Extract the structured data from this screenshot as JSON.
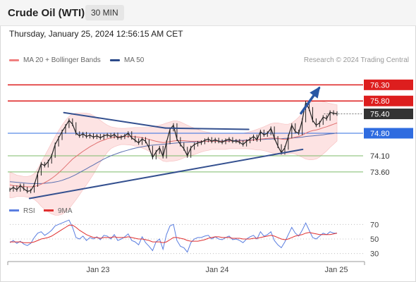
{
  "header": {
    "title": "Crude Oil (WTI)",
    "timeframe": "30 MIN",
    "datetime": "Thursday, January 25, 2024 12:56:15 AM CET"
  },
  "legend": {
    "items": [
      {
        "label": "MA 20 + Bollinger Bands",
        "color": "#f08080"
      },
      {
        "label": "MA 50",
        "color": "#2c4a8a"
      }
    ],
    "credit": "Research © 2024 Trading Central"
  },
  "colors": {
    "price": "#222222",
    "ma20": "#e07070",
    "bollinger_fill": "#fde3e3",
    "ma50": "#5a6fb0",
    "trendline": "#34508f",
    "resistance": "#dd1e1e",
    "support": "#7dbb6a",
    "pivot": "#2f6ce0",
    "current": "#333333",
    "arrow": "#2957a4",
    "rsi": "#5a7ee0",
    "rsi_ma": "#e03030"
  },
  "chart_data": [
    {
      "type": "line",
      "name": "price",
      "title": "",
      "x_ticks": [
        "Jan 23",
        "Jan 24",
        "Jan 25"
      ],
      "ylim": [
        72.55,
        77.05
      ],
      "levels": [
        {
          "value": 76.3,
          "label": "76.30",
          "kind": "resistance"
        },
        {
          "value": 75.8,
          "label": "75.80",
          "kind": "resistance"
        },
        {
          "value": 75.4,
          "label": "75.40",
          "kind": "current"
        },
        {
          "value": 74.8,
          "label": "74.80",
          "kind": "pivot"
        },
        {
          "value": 74.1,
          "label": "74.10",
          "kind": "support"
        },
        {
          "value": 73.6,
          "label": "73.60",
          "kind": "support"
        }
      ],
      "trendlines": [
        {
          "from": [
            0.165,
            75.44
          ],
          "to": [
            0.475,
            74.96
          ]
        },
        {
          "from": [
            0.475,
            74.96
          ],
          "to": [
            0.73,
            74.92
          ]
        },
        {
          "from": [
            0.06,
            72.78
          ],
          "to": [
            0.895,
            74.3
          ]
        }
      ],
      "arrow": {
        "from": [
          0.89,
          75.42
        ],
        "to": [
          0.945,
          76.2
        ]
      },
      "close": [
        73.05,
        73.12,
        73.05,
        73.18,
        73.08,
        73.0,
        73.02,
        73.2,
        73.55,
        73.85,
        73.8,
        73.92,
        74.1,
        74.45,
        74.65,
        74.85,
        75.02,
        75.2,
        75.08,
        74.8,
        74.72,
        74.78,
        74.7,
        74.74,
        74.68,
        74.72,
        74.66,
        74.72,
        74.75,
        74.7,
        74.76,
        74.66,
        74.68,
        74.72,
        74.8,
        74.66,
        74.58,
        74.5,
        74.62,
        74.55,
        74.35,
        74.05,
        74.22,
        74.35,
        74.08,
        74.52,
        74.92,
        75.05,
        74.62,
        74.45,
        74.32,
        74.1,
        74.35,
        74.45,
        74.5,
        74.52,
        74.58,
        74.62,
        74.55,
        74.6,
        74.55,
        74.52,
        74.58,
        74.62,
        74.55,
        74.56,
        74.52,
        74.45,
        74.55,
        74.62,
        74.7,
        74.6,
        74.85,
        74.75,
        74.8,
        74.95,
        74.65,
        74.4,
        74.2,
        74.35,
        74.7,
        75.05,
        74.85,
        74.8,
        75.2,
        75.75,
        75.55,
        75.2,
        75.05,
        75.12,
        75.3,
        75.25,
        75.45,
        75.42,
        75.4
      ],
      "ma20": [
        73.2,
        73.18,
        73.17,
        73.16,
        73.15,
        73.14,
        73.14,
        73.15,
        73.18,
        73.22,
        73.27,
        73.33,
        73.4,
        73.48,
        73.57,
        73.67,
        73.78,
        73.89,
        74.0,
        74.08,
        74.16,
        74.24,
        74.31,
        74.38,
        74.44,
        74.5,
        74.55,
        74.59,
        74.63,
        74.66,
        74.68,
        74.69,
        74.7,
        74.7,
        74.7,
        74.7,
        74.69,
        74.68,
        74.66,
        74.64,
        74.61,
        74.58,
        74.55,
        74.53,
        74.51,
        74.52,
        74.54,
        74.56,
        74.57,
        74.57,
        74.57,
        74.56,
        74.55,
        74.55,
        74.55,
        74.55,
        74.55,
        74.55,
        74.55,
        74.55,
        74.55,
        74.55,
        74.55,
        74.56,
        74.56,
        74.56,
        74.56,
        74.56,
        74.57,
        74.58,
        74.59,
        74.6,
        74.62,
        74.63,
        74.64,
        74.65,
        74.65,
        74.64,
        74.62,
        74.61,
        74.62,
        74.65,
        74.68,
        74.7,
        74.74,
        74.8,
        74.85,
        74.88,
        74.9,
        74.93,
        74.97,
        75.0,
        75.04,
        75.08,
        75.12
      ],
      "bb_upper": [
        73.6,
        73.55,
        73.5,
        73.48,
        73.46,
        73.46,
        73.48,
        73.55,
        73.7,
        73.9,
        74.1,
        74.3,
        74.5,
        74.7,
        74.88,
        75.05,
        75.2,
        75.32,
        75.4,
        75.42,
        75.43,
        75.43,
        75.42,
        75.4,
        75.35,
        75.28,
        75.2,
        75.12,
        75.05,
        75.0,
        74.98,
        74.96,
        74.95,
        74.95,
        74.96,
        74.97,
        74.98,
        74.98,
        74.98,
        74.98,
        74.98,
        75.0,
        75.02,
        75.05,
        75.08,
        75.12,
        75.15,
        75.18,
        75.18,
        75.15,
        75.1,
        75.05,
        75.0,
        74.96,
        74.92,
        74.88,
        74.85,
        74.83,
        74.8,
        74.8,
        74.8,
        74.8,
        74.8,
        74.8,
        74.8,
        74.8,
        74.8,
        74.8,
        74.82,
        74.85,
        74.88,
        74.92,
        74.96,
        75.0,
        75.05,
        75.1,
        75.12,
        75.12,
        75.1,
        75.08,
        75.08,
        75.12,
        75.2,
        75.3,
        75.42,
        75.6,
        75.72,
        75.78,
        75.8,
        75.8,
        75.78,
        75.75,
        75.72,
        75.7,
        75.68
      ],
      "bb_lower": [
        72.8,
        72.81,
        72.84,
        72.84,
        72.84,
        72.82,
        72.8,
        72.75,
        72.66,
        72.54,
        72.44,
        72.36,
        72.3,
        72.26,
        72.26,
        72.29,
        72.36,
        72.46,
        72.6,
        72.74,
        72.89,
        73.05,
        73.2,
        73.36,
        73.53,
        73.72,
        73.9,
        74.06,
        74.21,
        74.32,
        74.38,
        74.42,
        74.45,
        74.45,
        74.44,
        74.43,
        74.4,
        74.38,
        74.34,
        74.3,
        74.24,
        74.16,
        74.08,
        74.01,
        73.94,
        73.92,
        73.93,
        73.94,
        73.96,
        73.99,
        74.04,
        74.07,
        74.1,
        74.14,
        74.18,
        74.22,
        74.25,
        74.27,
        74.3,
        74.3,
        74.3,
        74.3,
        74.3,
        74.32,
        74.32,
        74.32,
        74.32,
        74.32,
        74.32,
        74.31,
        74.3,
        74.28,
        74.28,
        74.26,
        74.23,
        74.2,
        74.18,
        74.16,
        74.14,
        74.14,
        74.16,
        74.18,
        74.16,
        74.1,
        74.06,
        74.0,
        73.98,
        73.98,
        74.0,
        74.06,
        74.16,
        74.25,
        74.36,
        74.46,
        74.56
      ],
      "ma50": [
        73.3,
        73.29,
        73.28,
        73.27,
        73.26,
        73.25,
        73.24,
        73.24,
        73.24,
        73.24,
        73.25,
        73.26,
        73.27,
        73.29,
        73.31,
        73.34,
        73.38,
        73.42,
        73.47,
        73.52,
        73.58,
        73.64,
        73.7,
        73.76,
        73.82,
        73.88,
        73.94,
        74.0,
        74.05,
        74.1,
        74.14,
        74.18,
        74.22,
        74.25,
        74.28,
        74.31,
        74.34,
        74.36,
        74.38,
        74.4,
        74.42,
        74.43,
        74.44,
        74.45,
        74.46,
        74.47,
        74.48,
        74.49,
        74.5,
        74.51,
        74.52,
        74.52,
        74.53,
        74.53,
        74.54,
        74.54,
        74.55,
        74.55,
        74.55,
        74.56,
        74.56,
        74.56,
        74.57,
        74.57,
        74.57,
        74.58,
        74.58,
        74.58,
        74.59,
        74.59,
        74.6,
        74.6,
        74.61,
        74.61,
        74.62,
        74.62,
        74.63,
        74.63,
        74.63,
        74.64,
        74.64,
        74.65,
        74.66,
        74.67,
        74.68,
        74.7,
        74.71,
        74.72,
        74.73,
        74.74,
        74.75,
        74.77,
        74.78,
        74.79,
        74.81
      ]
    },
    {
      "type": "line",
      "name": "rsi",
      "title": "",
      "legend": [
        {
          "label": "RSI",
          "color": "#5a7ee0"
        },
        {
          "label": "9MA",
          "color": "#e03030"
        }
      ],
      "ylim": [
        20,
        80
      ],
      "y_ticks": [
        70,
        50,
        30
      ],
      "rsi": [
        45,
        48,
        44,
        47,
        43,
        41,
        44,
        52,
        58,
        60,
        55,
        58,
        62,
        68,
        70,
        72,
        74,
        76,
        66,
        52,
        50,
        54,
        48,
        52,
        50,
        53,
        49,
        55,
        54,
        50,
        56,
        48,
        50,
        53,
        57,
        48,
        46,
        42,
        53,
        45,
        40,
        34,
        46,
        50,
        36,
        56,
        68,
        70,
        48,
        40,
        38,
        32,
        45,
        50,
        52,
        52,
        54,
        55,
        50,
        53,
        50,
        49,
        52,
        54,
        49,
        50,
        48,
        45,
        50,
        53,
        55,
        50,
        60,
        54,
        56,
        60,
        48,
        42,
        38,
        46,
        56,
        66,
        58,
        54,
        62,
        72,
        62,
        52,
        50,
        54,
        58,
        56,
        60,
        58,
        58
      ],
      "rsi_ma": [
        46,
        46,
        46,
        46,
        45,
        45,
        45,
        46,
        48,
        50,
        51,
        52,
        54,
        57,
        60,
        63,
        66,
        69,
        69,
        66,
        62,
        59,
        56,
        54,
        52,
        52,
        51,
        52,
        52,
        52,
        53,
        52,
        52,
        52,
        53,
        52,
        51,
        50,
        50,
        49,
        48,
        46,
        46,
        46,
        45,
        46,
        49,
        52,
        52,
        51,
        50,
        48,
        47,
        47,
        47,
        48,
        49,
        51,
        52,
        53,
        53,
        52,
        52,
        52,
        51,
        51,
        51,
        50,
        50,
        50,
        51,
        51,
        52,
        53,
        54,
        55,
        54,
        52,
        50,
        49,
        50,
        52,
        54,
        55,
        56,
        58,
        59,
        58,
        57,
        56,
        56,
        56,
        56,
        57,
        58
      ]
    }
  ]
}
